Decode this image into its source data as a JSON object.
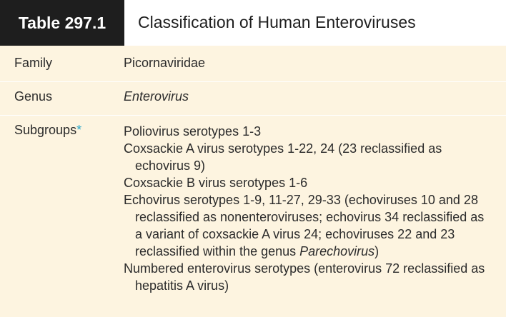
{
  "table": {
    "number": "Table 297.1",
    "title": "Classification of Human Enteroviruses",
    "rows": [
      {
        "label": "Family",
        "value": "Picornaviridae"
      },
      {
        "label": "Genus",
        "value": "Enterovirus"
      }
    ],
    "subgroups": {
      "label": "Subgroups",
      "footnote_mark": "*",
      "items": [
        "Poliovirus serotypes 1-3",
        "Coxsackie A virus serotypes 1-22, 24 (23 reclassified as echovirus 9)",
        "Coxsackie B virus serotypes 1-6",
        {
          "before": "Echovirus serotypes 1-9, 11-27, 29-33 (echoviruses 10 and 28 reclassified as nonenteroviruses; echovirus 34 reclassified as a variant of coxsackie A virus 24; echoviruses 22 and 23 reclassified within the genus ",
          "emphasis": "Parechovirus",
          "after": ")"
        },
        "Numbered enterovirus serotypes (enterovirus 72 reclassified as hepatitis A virus)"
      ]
    }
  },
  "colors": {
    "header_dark": "#1e1e1e",
    "row_background": "#fdf4e0",
    "footnote_accent": "#2aa7c9"
  }
}
